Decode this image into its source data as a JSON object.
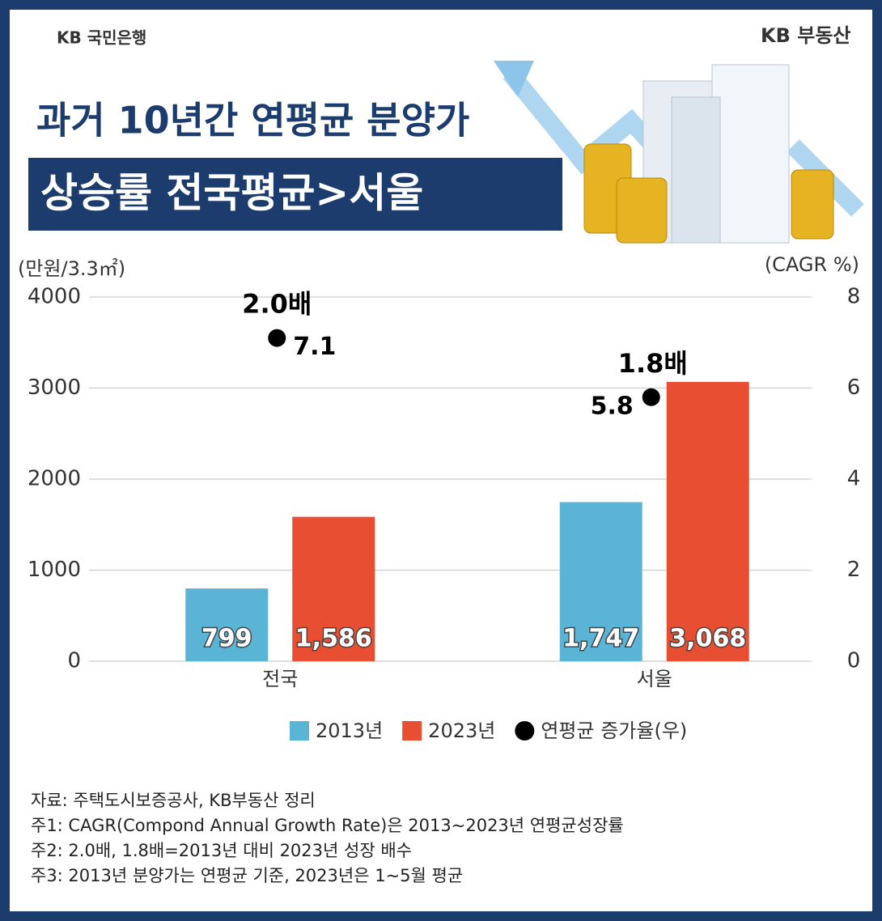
{
  "header": {
    "left_logo": "KB 국민은행",
    "right_logo": "KB 부동산",
    "title_line1": "과거 10년간 연평균 분양가",
    "title_line2": "상승률 전국평균>서울"
  },
  "chart_data": {
    "type": "bar",
    "y_axis_label": "(만원/3.3㎡)",
    "y2_axis_label": "(CAGR %)",
    "categories": [
      "전국",
      "서울"
    ],
    "series": [
      {
        "name": "2013년",
        "color": "#5ab4d6",
        "values": [
          799,
          1747
        ],
        "value_labels": [
          "799",
          "1,747"
        ]
      },
      {
        "name": "2023년",
        "color": "#e84e32",
        "values": [
          1586,
          3068
        ],
        "value_labels": [
          "1,586",
          "3,068"
        ]
      },
      {
        "name": "연평균 증가율(우)",
        "color": "#000000",
        "axis": "y2",
        "values": [
          7.1,
          5.8
        ]
      }
    ],
    "annotations": [
      "2.0배",
      "1.8배"
    ],
    "ylim": [
      0,
      4000
    ],
    "yticks": [
      0,
      1000,
      2000,
      3000,
      4000
    ],
    "y2lim": [
      0,
      8
    ],
    "y2ticks": [
      0,
      2,
      4,
      6,
      8
    ],
    "grid": true
  },
  "notes": [
    "자료: 주택도시보증공사, KB부동산 정리",
    "주1: CAGR(Compond Annual Growth Rate)은 2013~2023년 연평균성장률",
    "주2: 2.0배, 1.8배=2013년 대비 2023년 성장 배수",
    "주3: 2013년 분양가는 연평균 기준, 2023년은 1~5월 평균"
  ]
}
